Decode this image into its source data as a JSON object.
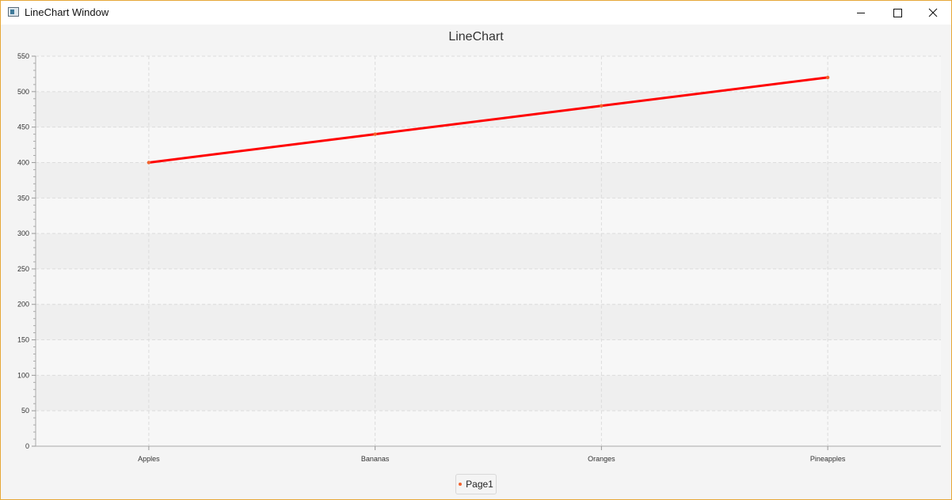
{
  "window": {
    "title": "LineChart Window",
    "controls": {
      "minimize": "minimize",
      "maximize": "maximize",
      "close": "close"
    }
  },
  "colors": {
    "series_line": "#ff0000",
    "legend_symbol": "#f3622d",
    "window_border": "#e6a838"
  },
  "chart_data": {
    "type": "line",
    "title": "LineChart",
    "xlabel": "",
    "ylabel": "",
    "categories": [
      "Apples",
      "Bananas",
      "Oranges",
      "Pineapples"
    ],
    "series": [
      {
        "name": "Page1",
        "values": [
          400,
          440,
          480,
          520
        ]
      }
    ],
    "ylim": [
      0,
      550
    ],
    "yticks": [
      0,
      50,
      100,
      150,
      200,
      250,
      300,
      350,
      400,
      450,
      500,
      550
    ],
    "grid": true,
    "legend": "bottom-center"
  }
}
